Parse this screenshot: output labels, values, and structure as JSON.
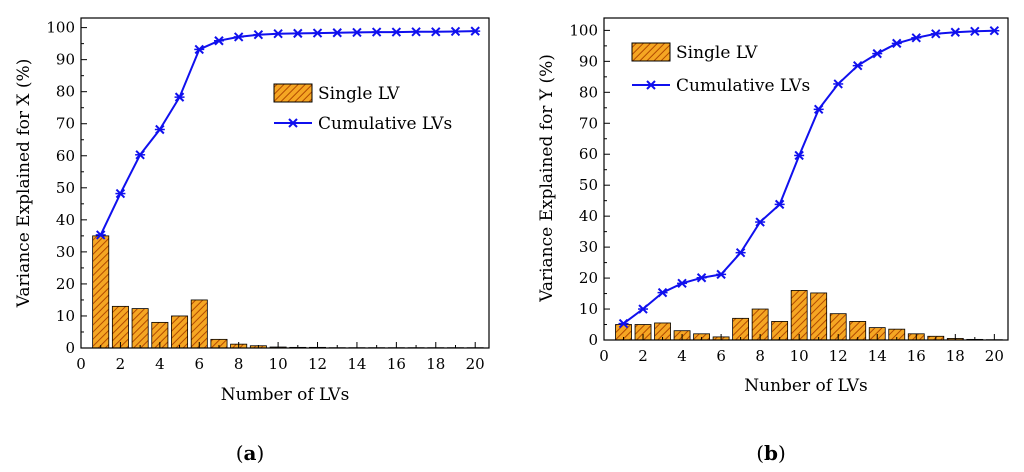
{
  "colors": {
    "bar_fill": "#f5a623",
    "bar_hatch": "#b24a00",
    "bar_stroke": "#000000",
    "line": "#1010ee",
    "marker": "#1010ee"
  },
  "chart_data": [
    {
      "panel_label": "(a)",
      "panel_letter": "a",
      "type": "bar+line",
      "xlabel": "Number of LVs",
      "ylabel": "Variance Explained for X (%)",
      "xlim": [
        0,
        20.7
      ],
      "ylim": [
        0,
        103
      ],
      "xticks": [
        0,
        2,
        4,
        6,
        8,
        10,
        12,
        14,
        16,
        18,
        20
      ],
      "yticks": [
        0,
        10,
        20,
        30,
        40,
        50,
        60,
        70,
        80,
        90,
        100
      ],
      "grid": false,
      "legend_position": "center-right",
      "x": [
        1,
        2,
        3,
        4,
        5,
        6,
        7,
        8,
        9,
        10,
        11,
        12,
        13,
        14,
        15,
        16,
        17,
        18,
        19,
        20
      ],
      "series": [
        {
          "name": "Single LV",
          "type": "bar",
          "values": [
            35,
            13,
            12.3,
            8,
            10,
            15,
            2.7,
            1.2,
            0.7,
            0.3,
            0.2,
            0.2,
            0.1,
            0.1,
            0.1,
            0.1,
            0.1,
            0.1,
            0.1,
            0.1
          ]
        },
        {
          "name": "Cumulative  LVs",
          "type": "line",
          "values": [
            35.3,
            48.2,
            60.3,
            68.2,
            78.3,
            93.2,
            95.9,
            97.1,
            97.8,
            98.1,
            98.2,
            98.3,
            98.4,
            98.5,
            98.6,
            98.6,
            98.7,
            98.7,
            98.8,
            98.9
          ]
        }
      ]
    },
    {
      "panel_label": "(b)",
      "panel_letter": "b",
      "type": "bar+line",
      "xlabel": "Nunber of LVs",
      "ylabel": "Variance Explained for Y (%)",
      "xlim": [
        0,
        20.7
      ],
      "ylim": [
        0,
        104
      ],
      "xticks": [
        0,
        2,
        4,
        6,
        8,
        10,
        12,
        14,
        16,
        18,
        20
      ],
      "yticks": [
        0,
        10,
        20,
        30,
        40,
        50,
        60,
        70,
        80,
        90,
        100
      ],
      "grid": false,
      "legend_position": "top-left",
      "x": [
        1,
        2,
        3,
        4,
        5,
        6,
        7,
        8,
        9,
        10,
        11,
        12,
        13,
        14,
        15,
        16,
        17,
        18,
        19,
        20
      ],
      "series": [
        {
          "name": "Single LV",
          "type": "bar",
          "values": [
            5,
            5,
            5.5,
            3,
            2,
            1,
            7,
            10,
            6,
            16,
            15.2,
            8.5,
            6,
            4,
            3.5,
            2,
            1.2,
            0.5,
            0.2,
            0.1
          ]
        },
        {
          "name": "Cumulative LVs",
          "type": "line",
          "values": [
            5.3,
            10,
            15.3,
            18.3,
            20.1,
            21.2,
            28.2,
            38.1,
            43.8,
            59.6,
            74.5,
            82.7,
            88.6,
            92.5,
            95.8,
            97.6,
            98.9,
            99.4,
            99.7,
            99.9
          ]
        }
      ]
    }
  ]
}
